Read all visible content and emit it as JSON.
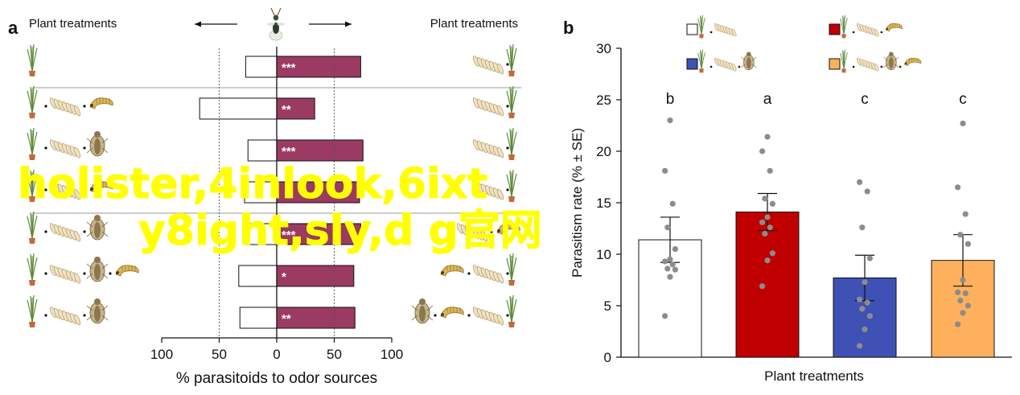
{
  "chart_data": [
    {
      "panel_label": "a",
      "type": "bar",
      "orientation": "horizontal",
      "header_left": "Plant treatments",
      "header_right": "Plant treatments",
      "xlabel": "% parasitoids to odor sources",
      "xlim": [
        -100,
        100
      ],
      "xticks": [
        100,
        50,
        0,
        50,
        100
      ],
      "reference_lines": [
        -50,
        50
      ],
      "rows": [
        {
          "left_icons": [
            "plant"
          ],
          "right_icons": [
            "eggs",
            "plant"
          ],
          "left": 27,
          "right": 73,
          "significance": "***",
          "separator_after": true
        },
        {
          "left_icons": [
            "plant",
            "eggs",
            "larva"
          ],
          "right_icons": [
            "eggs",
            "plant"
          ],
          "left": 67,
          "right": 33,
          "significance": "**"
        },
        {
          "left_icons": [
            "plant",
            "eggs",
            "parasitoid"
          ],
          "right_icons": [
            "eggs",
            "plant"
          ],
          "left": 25,
          "right": 75,
          "significance": "***"
        },
        {
          "left_icons": [
            "plant",
            "eggs",
            "larva"
          ],
          "right_icons": [
            "eggs",
            "plant"
          ],
          "left": 28,
          "right": 72,
          "significance": "",
          "separator_after": true
        },
        {
          "left_icons": [
            "plant",
            "eggs",
            "parasitoid"
          ],
          "right_icons": [
            "eggs",
            "larva"
          ],
          "left": 27,
          "right": 73,
          "significance": "***"
        },
        {
          "left_icons": [
            "plant",
            "eggs",
            "parasitoid",
            "larva"
          ],
          "right_icons": [
            "larva",
            "eggs",
            "plant"
          ],
          "left": 33,
          "right": 67,
          "significance": "*"
        },
        {
          "left_icons": [
            "plant",
            "eggs",
            "parasitoid"
          ],
          "right_icons": [
            "parasitoid",
            "larva",
            "eggs",
            "plant"
          ],
          "left": 32,
          "right": 68,
          "significance": "**"
        }
      ],
      "colors": {
        "right_bar": "#9b3a62",
        "left_bar": "#ffffff",
        "separator": "#999999"
      }
    },
    {
      "panel_label": "b",
      "type": "bar",
      "ylabel": "Parasitism rate (% ± SE)",
      "xlabel": "Plant treatments",
      "ylim": [
        0,
        30
      ],
      "yticks": [
        0,
        5,
        10,
        15,
        20,
        25,
        30
      ],
      "legend": [
        {
          "icons": [
            "plant",
            "eggs"
          ],
          "color": "#ffffff"
        },
        {
          "icons": [
            "plant",
            "eggs",
            "larva"
          ],
          "color": "#c00000"
        },
        {
          "icons": [
            "plant",
            "eggs",
            "parasitoid"
          ],
          "color": "#3f51b5"
        },
        {
          "icons": [
            "plant",
            "eggs",
            "parasitoid",
            "larva"
          ],
          "color": "#ffb05c"
        }
      ],
      "bars": [
        {
          "mean": 11.4,
          "se": 2.2,
          "letter": "b",
          "color": "#ffffff",
          "points": [
            4.0,
            7.8,
            8.5,
            8.6,
            9.0,
            9.3,
            9.5,
            10.5,
            12.6,
            14.9,
            18.1,
            23.0
          ]
        },
        {
          "mean": 14.1,
          "se": 1.8,
          "letter": "a",
          "color": "#c00000",
          "points": [
            6.9,
            9.4,
            10.1,
            12.0,
            12.6,
            13.1,
            13.6,
            14.9,
            15.4,
            18.1,
            20.0,
            21.4
          ]
        },
        {
          "mean": 7.7,
          "se": 2.2,
          "letter": "c",
          "color": "#3f51b5",
          "points": [
            1.1,
            2.7,
            4.0,
            4.7,
            5.3,
            5.6,
            7.3,
            9.6,
            12.6,
            16.1,
            17.0
          ]
        },
        {
          "mean": 9.4,
          "se": 2.5,
          "letter": "c",
          "color": "#ffb05c",
          "points": [
            3.2,
            4.3,
            5.0,
            5.5,
            6.2,
            6.3,
            7.5,
            11.0,
            11.9,
            13.9,
            16.5,
            22.7
          ]
        }
      ]
    }
  ],
  "watermark": {
    "line1": "holister,4inlook,6ixt",
    "line2": "y8ight,sly,d g官网",
    "color": "#ffff00"
  }
}
